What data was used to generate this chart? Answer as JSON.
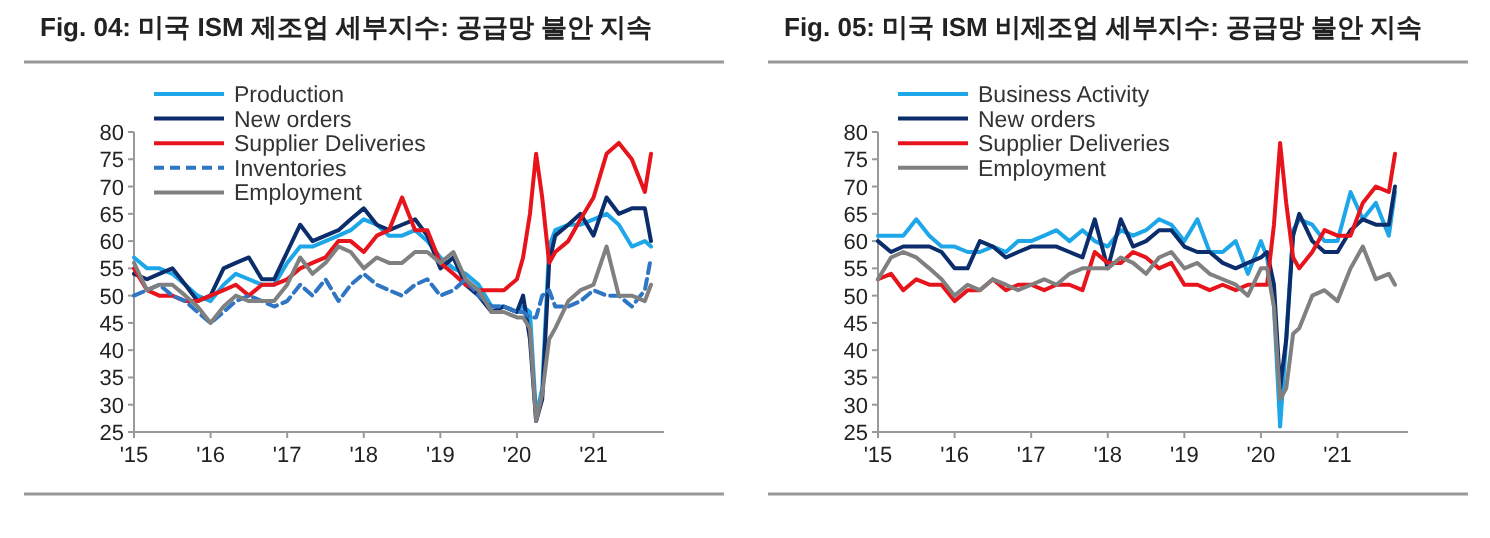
{
  "chart_data": [
    {
      "type": "line",
      "title": "Fig. 04: 미국 ISM 제조업 세부지수: 공급망 불안 지속",
      "legend": "top left",
      "x": [
        2015.0,
        2015.17,
        2015.33,
        2015.5,
        2015.67,
        2015.83,
        2016.0,
        2016.17,
        2016.33,
        2016.5,
        2016.67,
        2016.83,
        2017.0,
        2017.17,
        2017.33,
        2017.5,
        2017.67,
        2017.83,
        2018.0,
        2018.17,
        2018.33,
        2018.5,
        2018.67,
        2018.83,
        2019.0,
        2019.17,
        2019.33,
        2019.5,
        2019.67,
        2019.83,
        2020.0,
        2020.08,
        2020.17,
        2020.25,
        2020.33,
        2020.42,
        2020.5,
        2020.67,
        2020.83,
        2021.0,
        2021.17,
        2021.33,
        2021.5,
        2021.67,
        2021.75
      ],
      "xlim": [
        2015,
        2021.92
      ],
      "xticks": [
        {
          "value": 2015,
          "label": "'15"
        },
        {
          "value": 2016,
          "label": "'16"
        },
        {
          "value": 2017,
          "label": "'17"
        },
        {
          "value": 2018,
          "label": "'18"
        },
        {
          "value": 2019,
          "label": "'19"
        },
        {
          "value": 2020,
          "label": "'20"
        },
        {
          "value": 2021,
          "label": "'21"
        }
      ],
      "ylim": [
        25,
        80
      ],
      "yticks": [
        25,
        30,
        35,
        40,
        45,
        50,
        55,
        60,
        65,
        70,
        75,
        80
      ],
      "series": [
        {
          "name": "Production",
          "color": "#1ea7e8",
          "values": [
            57,
            55,
            55,
            54,
            52,
            50,
            49,
            52,
            54,
            53,
            52,
            52,
            56,
            59,
            59,
            60,
            61,
            62,
            64,
            63,
            61,
            61,
            62,
            60,
            57,
            55,
            54,
            52,
            48,
            48,
            47,
            48,
            47,
            28,
            33,
            59,
            62,
            63,
            63,
            64,
            65,
            63,
            59,
            60,
            59
          ]
        },
        {
          "name": "New orders",
          "color": "#0c2d6b",
          "values": [
            54,
            53,
            54,
            55,
            52,
            49,
            50,
            55,
            56,
            57,
            53,
            53,
            58,
            63,
            60,
            61,
            62,
            64,
            66,
            63,
            62,
            63,
            64,
            61,
            55,
            57,
            52,
            50,
            47,
            48,
            47,
            50,
            42,
            27,
            31,
            56,
            61,
            63,
            65,
            61,
            68,
            65,
            66,
            66,
            60
          ]
        },
        {
          "name": "Supplier Deliveries",
          "color": "#e8141c",
          "values": [
            55,
            51,
            50,
            50,
            49,
            49,
            50,
            51,
            52,
            50,
            52,
            52,
            53,
            55,
            56,
            57,
            60,
            60,
            58,
            61,
            62,
            68,
            62,
            62,
            56,
            54,
            52,
            51,
            51,
            51,
            53,
            57,
            65,
            76,
            68,
            56,
            58,
            60,
            64,
            68,
            76,
            78,
            75,
            69,
            76
          ]
        },
        {
          "name": "Inventories",
          "color": "#2e75c4",
          "line_style": "dashed",
          "values": [
            50,
            51,
            52,
            50,
            49,
            47,
            45,
            47,
            49,
            50,
            49,
            48,
            49,
            52,
            50,
            53,
            49,
            52,
            54,
            52,
            51,
            50,
            52,
            53,
            50,
            51,
            53,
            50,
            48,
            48,
            47,
            47,
            46,
            46,
            50,
            51,
            48,
            48,
            49,
            51,
            50,
            50,
            48,
            51,
            57
          ]
        },
        {
          "name": "Employment",
          "color": "#808080",
          "values": [
            56,
            51,
            52,
            52,
            50,
            48,
            45,
            48,
            50,
            49,
            49,
            49,
            52,
            57,
            54,
            56,
            59,
            58,
            55,
            57,
            56,
            56,
            58,
            58,
            56,
            58,
            53,
            51,
            47,
            47,
            46,
            46,
            44,
            27,
            32,
            42,
            44,
            49,
            51,
            52,
            59,
            50,
            50,
            49,
            52
          ]
        }
      ]
    },
    {
      "type": "line",
      "title": "Fig. 05: 미국 ISM 비제조업 세부지수: 공급망 불안 지속",
      "legend": "top left",
      "x": [
        2015.0,
        2015.17,
        2015.33,
        2015.5,
        2015.67,
        2015.83,
        2016.0,
        2016.17,
        2016.33,
        2016.5,
        2016.67,
        2016.83,
        2017.0,
        2017.17,
        2017.33,
        2017.5,
        2017.67,
        2017.83,
        2018.0,
        2018.17,
        2018.33,
        2018.5,
        2018.67,
        2018.83,
        2019.0,
        2019.17,
        2019.33,
        2019.5,
        2019.67,
        2019.83,
        2020.0,
        2020.08,
        2020.17,
        2020.25,
        2020.33,
        2020.42,
        2020.5,
        2020.67,
        2020.83,
        2021.0,
        2021.17,
        2021.33,
        2021.5,
        2021.67,
        2021.75
      ],
      "xlim": [
        2015,
        2021.92
      ],
      "xticks": [
        {
          "value": 2015,
          "label": "'15"
        },
        {
          "value": 2016,
          "label": "'16"
        },
        {
          "value": 2017,
          "label": "'17"
        },
        {
          "value": 2018,
          "label": "'18"
        },
        {
          "value": 2019,
          "label": "'19"
        },
        {
          "value": 2020,
          "label": "'20"
        },
        {
          "value": 2021,
          "label": "'21"
        }
      ],
      "ylim": [
        25,
        80
      ],
      "yticks": [
        25,
        30,
        35,
        40,
        45,
        50,
        55,
        60,
        65,
        70,
        75,
        80
      ],
      "series": [
        {
          "name": "Business Activity",
          "color": "#1ea7e8",
          "values": [
            61,
            61,
            61,
            64,
            61,
            59,
            59,
            58,
            58,
            59,
            58,
            60,
            60,
            61,
            62,
            60,
            62,
            60,
            59,
            62,
            61,
            62,
            64,
            63,
            60,
            64,
            58,
            58,
            60,
            54,
            60,
            57,
            48,
            26,
            42,
            62,
            64,
            63,
            60,
            60,
            69,
            64,
            67,
            61,
            69
          ]
        },
        {
          "name": "New orders",
          "color": "#0c2d6b",
          "values": [
            60,
            58,
            59,
            59,
            59,
            58,
            55,
            55,
            60,
            59,
            57,
            58,
            59,
            59,
            59,
            58,
            57,
            64,
            55,
            64,
            59,
            60,
            62,
            62,
            59,
            58,
            58,
            56,
            55,
            56,
            57,
            58,
            52,
            33,
            42,
            61,
            65,
            60,
            58,
            58,
            62,
            64,
            63,
            63,
            70
          ]
        },
        {
          "name": "Supplier Deliveries",
          "color": "#e8141c",
          "values": [
            53,
            54,
            51,
            53,
            52,
            52,
            49,
            51,
            51,
            53,
            51,
            52,
            52,
            51,
            52,
            52,
            51,
            58,
            56,
            56,
            58,
            57,
            55,
            56,
            52,
            52,
            51,
            52,
            51,
            52,
            52,
            52,
            63,
            78,
            67,
            57,
            55,
            58,
            62,
            61,
            61,
            67,
            70,
            69,
            76
          ]
        },
        {
          "name": "Employment",
          "color": "#808080",
          "values": [
            53,
            57,
            58,
            57,
            55,
            53,
            50,
            52,
            51,
            53,
            52,
            51,
            52,
            53,
            52,
            54,
            55,
            55,
            55,
            57,
            56,
            54,
            57,
            58,
            55,
            56,
            54,
            53,
            52,
            50,
            55,
            55,
            48,
            31,
            33,
            43,
            44,
            50,
            51,
            49,
            55,
            59,
            53,
            54,
            52
          ]
        }
      ]
    }
  ]
}
